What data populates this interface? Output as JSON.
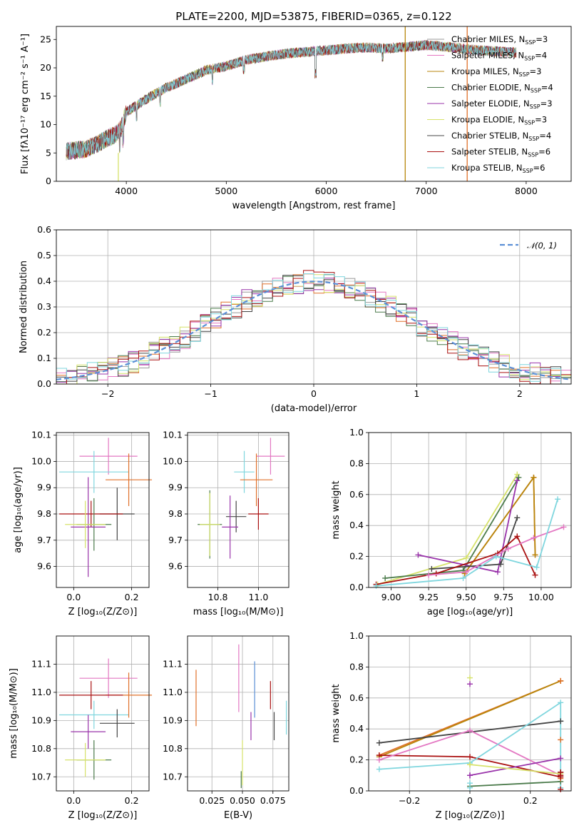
{
  "figure": {
    "title": "PLATE=2200, MJD=53875, FIBERID=0365, z=0.122"
  },
  "chart_data": [
    {
      "id": "spectrum",
      "type": "line",
      "xlabel": "wavelength [Angstrom, rest frame]",
      "ylabel": "Flux [fλ10⁻¹⁷ erg cm⁻² s⁻¹ A⁻¹]",
      "xlim": [
        3300,
        8450
      ],
      "ylim": [
        0,
        27.3
      ],
      "xticks": [
        4000,
        5000,
        6000,
        7000,
        8000
      ],
      "yticks": [
        0,
        5,
        10,
        15,
        20,
        25
      ],
      "grid": false,
      "legend_position": "right",
      "continuum_shape": {
        "x": [
          3400,
          3600,
          3700,
          3800,
          3900,
          3950,
          4000,
          4200,
          4400,
          4600,
          4800,
          5000,
          5200,
          5400,
          5600,
          5800,
          6000,
          6200,
          6400,
          6600,
          6800,
          7000,
          7200,
          7400,
          7600,
          7800,
          7900
        ],
        "y": [
          5.3,
          5.7,
          6.5,
          7.5,
          8.3,
          9.5,
          12.2,
          14.5,
          16.5,
          18.0,
          19.6,
          20.3,
          21.4,
          22.0,
          22.5,
          22.8,
          23.1,
          23.4,
          23.6,
          23.4,
          23.7,
          24.0,
          23.7,
          23.3,
          23.0,
          22.8,
          22.7
        ]
      },
      "series": [
        {
          "name": "Chabrier MILES, N<sub>SSP</sub>=3",
          "color": "#999999"
        },
        {
          "name": "Salpeter MILES, N<sub>SSP</sub>=4",
          "color": "#e377c2"
        },
        {
          "name": "Kroupa MILES, N<sub>SSP</sub>=3",
          "color": "#b8860b"
        },
        {
          "name": "Chabrier ELODIE, N<sub>SSP</sub>=4",
          "color": "#4a7a4a"
        },
        {
          "name": "Salpeter ELODIE, N<sub>SSP</sub>=3",
          "color": "#9933aa"
        },
        {
          "name": "Kroupa ELODIE, N<sub>SSP</sub>=3",
          "color": "#d6e26a"
        },
        {
          "name": "Chabrier STELIB, N<sub>SSP</sub>=4",
          "color": "#444444"
        },
        {
          "name": "Salpeter STELIB, N<sub>SSP</sub>=6",
          "color": "#aa1111"
        },
        {
          "name": "Kroupa STELIB, N<sub>SSP</sub>=6",
          "color": "#7fd6de"
        }
      ],
      "vertical_lines": [
        {
          "x": 3920,
          "ymax": 5,
          "color": "#d6e26a"
        },
        {
          "x": 6790,
          "ymax": 27.3,
          "color": "#b8860b"
        },
        {
          "x": 7410,
          "ymax": 27.3,
          "color": "#e0702a"
        }
      ]
    },
    {
      "id": "residuals",
      "type": "step",
      "xlabel": "(data-model)/error",
      "ylabel": "Normed distribution",
      "xlim": [
        -2.5,
        2.5
      ],
      "ylim": [
        0,
        0.6
      ],
      "xticks": [
        -2,
        -1,
        0,
        1,
        2
      ],
      "yticks": [
        0.0,
        0.1,
        0.2,
        0.3,
        0.4,
        0.5,
        0.6
      ],
      "grid": true,
      "bin_width": 0.1,
      "legend_position": "top-right",
      "reference_curve": {
        "name": "𝒩(0, 1)",
        "color": "#5b8fd6"
      },
      "hist_colors": [
        "#999999",
        "#e377c2",
        "#e0702a",
        "#4a7a4a",
        "#9933aa",
        "#d6e26a",
        "#444444",
        "#aa1111",
        "#7fd6de"
      ]
    },
    {
      "id": "z-age",
      "type": "errorbar",
      "xlabel": "Z [log₁₀(Z/Z⊙)]",
      "ylabel": "age  [log₁₀(age/yr)]",
      "xlim": [
        -0.06,
        0.26
      ],
      "ylim": [
        9.52,
        10.11
      ],
      "xticks": [
        0.0,
        0.2
      ],
      "yticks": [
        9.6,
        9.7,
        9.8,
        9.9,
        10.0,
        10.1
      ],
      "grid": true,
      "points": [
        {
          "x": 0.12,
          "y": 10.02,
          "xerr": 0.1,
          "yerr": 0.07,
          "color": "#e377c2"
        },
        {
          "x": 0.07,
          "y": 9.96,
          "xerr": 0.12,
          "yerr": 0.08,
          "color": "#7fd6de"
        },
        {
          "x": 0.19,
          "y": 9.93,
          "xerr": 0.08,
          "yerr": 0.1,
          "color": "#e0702a"
        },
        {
          "x": 0.15,
          "y": 9.8,
          "xerr": 0.06,
          "yerr": 0.1,
          "color": "#444444"
        },
        {
          "x": 0.06,
          "y": 9.8,
          "xerr": 0.11,
          "yerr": 0.05,
          "color": "#aa1111"
        },
        {
          "x": 0.07,
          "y": 9.76,
          "xerr": 0.06,
          "yerr": 0.1,
          "color": "#4a7a4a"
        },
        {
          "x": 0.05,
          "y": 9.75,
          "xerr": 0.06,
          "yerr": 0.19,
          "color": "#9933aa"
        },
        {
          "x": 0.04,
          "y": 9.76,
          "xerr": 0.07,
          "yerr": 0.09,
          "color": "#d6e26a"
        }
      ]
    },
    {
      "id": "mass-age",
      "type": "errorbar",
      "xlabel": "mass [log₁₀(M/M⊙)]",
      "ylabel": "",
      "xlim": [
        10.65,
        11.15
      ],
      "ylim": [
        9.52,
        10.11
      ],
      "xticks": [
        10.8,
        11.0
      ],
      "yticks": [
        9.6,
        9.7,
        9.8,
        9.9,
        10.0,
        10.1
      ],
      "grid": true,
      "points": [
        {
          "x": 11.06,
          "y": 10.02,
          "xerr": 0.07,
          "yerr": 0.07,
          "color": "#e377c2"
        },
        {
          "x": 10.93,
          "y": 9.96,
          "xerr": 0.05,
          "yerr": 0.08,
          "color": "#7fd6de"
        },
        {
          "x": 10.99,
          "y": 9.93,
          "xerr": 0.08,
          "yerr": 0.1,
          "color": "#e0702a"
        },
        {
          "x": 10.89,
          "y": 9.79,
          "xerr": 0.05,
          "yerr": 0.06,
          "color": "#444444"
        },
        {
          "x": 11.0,
          "y": 9.8,
          "xerr": 0.05,
          "yerr": 0.06,
          "color": "#aa1111"
        },
        {
          "x": 10.76,
          "y": 9.76,
          "xerr": 0.06,
          "yerr": 0.13,
          "color": "#4a7a4a"
        },
        {
          "x": 10.86,
          "y": 9.75,
          "xerr": 0.04,
          "yerr": 0.12,
          "color": "#9933aa"
        },
        {
          "x": 10.76,
          "y": 9.76,
          "xerr": 0.05,
          "yerr": 0.12,
          "color": "#d6e26a"
        }
      ]
    },
    {
      "id": "age-weight",
      "type": "line",
      "xlabel": "age  [log₁₀(age/yr)]",
      "ylabel": "mass weight",
      "xlim": [
        8.85,
        10.2
      ],
      "ylim": [
        0,
        1.0
      ],
      "xticks": [
        9.0,
        9.25,
        9.5,
        9.75,
        10.0
      ],
      "yticks": [
        0.0,
        0.2,
        0.4,
        0.6,
        0.8,
        1.0
      ],
      "grid": true,
      "series": [
        {
          "color": "#d6e26a",
          "x": [
            8.91,
            9.5,
            9.84
          ],
          "y": [
            0.02,
            0.19,
            0.73
          ]
        },
        {
          "color": "#e0702a",
          "x": [
            9.49,
            9.95,
            9.96
          ],
          "y": [
            0.09,
            0.71,
            0.21
          ]
        },
        {
          "color": "#b8860b",
          "x": [
            9.49,
            9.95,
            9.96
          ],
          "y": [
            0.09,
            0.71,
            0.21
          ]
        },
        {
          "color": "#4a7a4a",
          "x": [
            8.96,
            9.48,
            9.85
          ],
          "y": [
            0.06,
            0.11,
            0.71
          ]
        },
        {
          "color": "#9933aa",
          "x": [
            9.18,
            9.71,
            9.84
          ],
          "y": [
            0.21,
            0.1,
            0.69
          ]
        },
        {
          "color": "#444444",
          "x": [
            9.27,
            9.73,
            9.84
          ],
          "y": [
            0.12,
            0.15,
            0.45
          ]
        },
        {
          "color": "#aa1111",
          "x": [
            8.9,
            9.3,
            9.71,
            9.84,
            9.96
          ],
          "y": [
            0.02,
            0.09,
            0.22,
            0.33,
            0.08
          ]
        },
        {
          "color": "#e377c2",
          "x": [
            9.25,
            9.5,
            9.78,
            9.95,
            10.15
          ],
          "y": [
            0.08,
            0.1,
            0.25,
            0.32,
            0.39
          ]
        },
        {
          "color": "#7fd6de",
          "x": [
            8.9,
            9.48,
            9.7,
            9.97,
            10.11
          ],
          "y": [
            0.01,
            0.06,
            0.2,
            0.13,
            0.57
          ]
        }
      ]
    },
    {
      "id": "z-mass",
      "type": "errorbar",
      "xlabel": "Z [log₁₀(Z/Z⊙)]",
      "ylabel": "mass [log₁₀(M/M⊙)]",
      "xlim": [
        -0.06,
        0.26
      ],
      "ylim": [
        10.65,
        11.2
      ],
      "xticks": [
        0.0,
        0.2
      ],
      "yticks": [
        10.7,
        10.8,
        10.9,
        11.0,
        11.1
      ],
      "grid": true,
      "points": [
        {
          "x": 0.12,
          "y": 11.05,
          "xerr": 0.1,
          "yerr": 0.07,
          "color": "#e377c2"
        },
        {
          "x": 0.07,
          "y": 10.92,
          "xerr": 0.12,
          "yerr": 0.05,
          "color": "#7fd6de"
        },
        {
          "x": 0.19,
          "y": 10.99,
          "xerr": 0.08,
          "yerr": 0.08,
          "color": "#e0702a"
        },
        {
          "x": 0.15,
          "y": 10.89,
          "xerr": 0.06,
          "yerr": 0.05,
          "color": "#444444"
        },
        {
          "x": 0.06,
          "y": 10.99,
          "xerr": 0.11,
          "yerr": 0.05,
          "color": "#aa1111"
        },
        {
          "x": 0.07,
          "y": 10.76,
          "xerr": 0.06,
          "yerr": 0.07,
          "color": "#4a7a4a"
        },
        {
          "x": 0.05,
          "y": 10.86,
          "xerr": 0.06,
          "yerr": 0.06,
          "color": "#9933aa"
        },
        {
          "x": 0.04,
          "y": 10.76,
          "xerr": 0.07,
          "yerr": 0.06,
          "color": "#d6e26a"
        }
      ]
    },
    {
      "id": "ebv-mass",
      "type": "errorbar",
      "xlabel": "E(B-V)",
      "ylabel": "",
      "xlim": [
        0.005,
        0.088
      ],
      "ylim": [
        10.65,
        11.2
      ],
      "xticks": [
        0.025,
        0.05,
        0.075
      ],
      "yticks": [
        10.7,
        10.8,
        10.9,
        11.0,
        11.1
      ],
      "grid": true,
      "points": [
        {
          "x": 0.012,
          "y": 10.98,
          "xerr": 0,
          "yerr": 0.1,
          "color": "#e0702a"
        },
        {
          "x": 0.047,
          "y": 11.05,
          "xerr": 0,
          "yerr": 0.12,
          "color": "#e377c2"
        },
        {
          "x": 0.06,
          "y": 11.01,
          "xerr": 0,
          "yerr": 0.1,
          "color": "#5b8fd6"
        },
        {
          "x": 0.057,
          "y": 10.88,
          "xerr": 0,
          "yerr": 0.05,
          "color": "#9933aa"
        },
        {
          "x": 0.073,
          "y": 10.99,
          "xerr": 0,
          "yerr": 0.05,
          "color": "#aa1111"
        },
        {
          "x": 0.076,
          "y": 10.88,
          "xerr": 0,
          "yerr": 0.05,
          "color": "#444444"
        },
        {
          "x": 0.05,
          "y": 10.75,
          "xerr": 0,
          "yerr": 0.08,
          "color": "#d6e26a"
        },
        {
          "x": 0.049,
          "y": 10.69,
          "xerr": 0,
          "yerr": 0.03,
          "color": "#4a7a4a"
        },
        {
          "x": 0.086,
          "y": 10.91,
          "xerr": 0,
          "yerr": 0.06,
          "color": "#7fd6de"
        }
      ]
    },
    {
      "id": "z-weight",
      "type": "line",
      "xlabel": "Z [log₁₀(Z/Z⊙)]",
      "ylabel": "mass weight",
      "xlim": [
        -0.335,
        0.335
      ],
      "ylim": [
        0,
        1.0
      ],
      "xticks": [
        -0.2,
        0.0,
        0.2
      ],
      "yticks": [
        0.0,
        0.2,
        0.4,
        0.6,
        0.8,
        1.0
      ],
      "grid": true,
      "series": [
        {
          "color": "#e0702a",
          "x": [
            -0.3,
            0.3
          ],
          "y": [
            0.23,
            0.71
          ]
        },
        {
          "color": "#b8860b",
          "x": [
            -0.3,
            0.3
          ],
          "y": [
            0.22,
            0.71
          ]
        },
        {
          "color": "#444444",
          "x": [
            -0.3,
            0.3
          ],
          "y": [
            0.31,
            0.45
          ]
        },
        {
          "color": "#aa1111",
          "x": [
            -0.3,
            0.0,
            0.3
          ],
          "y": [
            0.23,
            0.22,
            0.09
          ]
        },
        {
          "color": "#e377c2",
          "x": [
            -0.3,
            0.0,
            0.3
          ],
          "y": [
            0.2,
            0.39,
            0.1
          ]
        },
        {
          "color": "#7fd6de",
          "x": [
            -0.3,
            0.0,
            0.3,
            0.3
          ],
          "y": [
            0.14,
            0.18,
            0.57,
            0.02
          ]
        },
        {
          "color": "#4a7a4a",
          "x": [
            0.0,
            0.3
          ],
          "y": [
            0.03,
            0.06
          ]
        },
        {
          "color": "#9933aa",
          "x": [
            0.0,
            0.3
          ],
          "y": [
            0.1,
            0.21
          ]
        },
        {
          "color": "#d6e26a",
          "x": [
            0.0,
            0.3
          ],
          "y": [
            0.17,
            0.11
          ]
        }
      ],
      "markers_at_edges": [
        {
          "color": "#d6e26a",
          "x": 0.0,
          "y": [
            0.73,
            0.17
          ]
        },
        {
          "color": "#9933aa",
          "x": 0.0,
          "y": [
            0.69,
            0.1
          ]
        },
        {
          "color": "#e0702a",
          "x": 0.3,
          "y": [
            0.71,
            0.33,
            0.12,
            0.08
          ]
        },
        {
          "color": "#444444",
          "x": 0.3,
          "y": [
            0.45,
            0.12
          ]
        },
        {
          "color": "#aa1111",
          "x": 0.3,
          "y": [
            0.09,
            0.1,
            0.12,
            0.01
          ]
        },
        {
          "color": "#7fd6de",
          "x": 0.0,
          "y": [
            0.05,
            0.02
          ]
        }
      ]
    }
  ]
}
